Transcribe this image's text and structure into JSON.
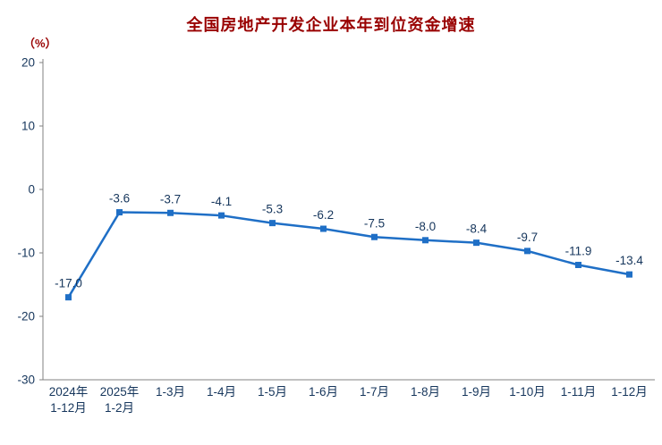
{
  "title": "全国房地产开发企业本年到位资金增速",
  "y_unit_label": "（%）",
  "colors": {
    "title": "#990000",
    "y_unit": "#990000",
    "line": "#1F6FC6",
    "marker": "#1F6FC6",
    "data_label": "#16365C",
    "tick_label": "#16365C",
    "axis": "#808080"
  },
  "chart_data": {
    "type": "line",
    "title": "全国房地产开发企业本年到位资金增速",
    "ylabel": "（%）",
    "categories": [
      [
        "2024年",
        "1-12月"
      ],
      [
        "2025年",
        "1-2月"
      ],
      [
        "1-3月"
      ],
      [
        "1-4月"
      ],
      [
        "1-5月"
      ],
      [
        "1-6月"
      ],
      [
        "1-7月"
      ],
      [
        "1-8月"
      ],
      [
        "1-9月"
      ],
      [
        "1-10月"
      ],
      [
        "1-11月"
      ],
      [
        "1-12月"
      ]
    ],
    "values": [
      -17.0,
      -3.6,
      -3.7,
      -4.1,
      -5.3,
      -6.2,
      -7.5,
      -8.0,
      -8.4,
      -9.7,
      -11.9,
      -13.4
    ],
    "data_labels": [
      "-17.0",
      "-3.6",
      "-3.7",
      "-4.1",
      "-5.3",
      "-6.2",
      "-7.5",
      "-8.0",
      "-8.4",
      "-9.7",
      "-11.9",
      "-13.4"
    ],
    "ylim": [
      -30,
      20
    ],
    "yticks": [
      20,
      10,
      0,
      -10,
      -20,
      -30
    ],
    "grid": false,
    "legend": "none"
  }
}
